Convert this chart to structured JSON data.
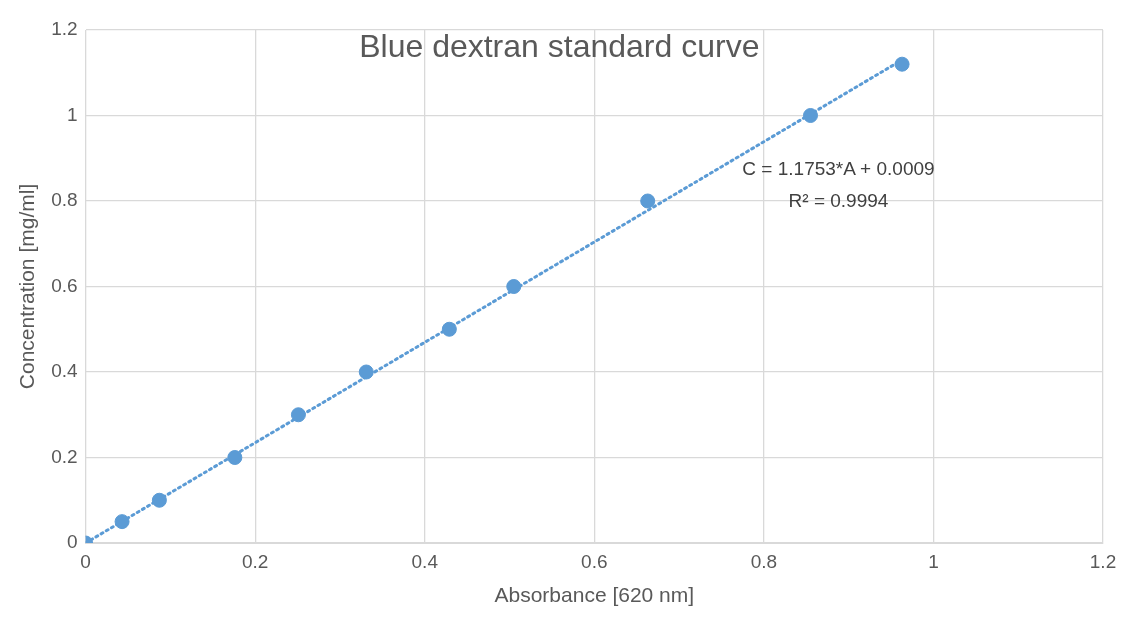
{
  "chart_data": {
    "type": "scatter",
    "title": "Blue dextran standard curve",
    "xlabel": "Absorbance [620 nm]",
    "ylabel": "Concentration [mg/ml]",
    "x": [
      0,
      0.043,
      0.087,
      0.176,
      0.251,
      0.331,
      0.429,
      0.505,
      0.663,
      0.855,
      0.963
    ],
    "series": [
      {
        "type": "scatter",
        "color": "#5b9bd5",
        "marker": "circle",
        "values": [
          0,
          0.05,
          0.1,
          0.2,
          0.3,
          0.4,
          0.5,
          0.6,
          0.8,
          1.0,
          1.12
        ]
      },
      {
        "type": "line",
        "color": "#5b9bd5",
        "marker": "none",
        "line_style": "dotted",
        "x": [
          0,
          0.963
        ],
        "values": [
          0,
          1.13
        ]
      }
    ],
    "xlim": [
      0,
      1.2
    ],
    "xticks": [
      0,
      0.2,
      0.4,
      0.6,
      0.8,
      1,
      1.2
    ],
    "ylim": [
      0,
      1.2
    ],
    "yticks": [
      0,
      0.2,
      0.4,
      0.6,
      0.8,
      1,
      1.2
    ],
    "grid": true,
    "legend": false,
    "annotations": [
      "C = 1.1753*A + 0.0009",
      "R² = 0.9994"
    ]
  }
}
